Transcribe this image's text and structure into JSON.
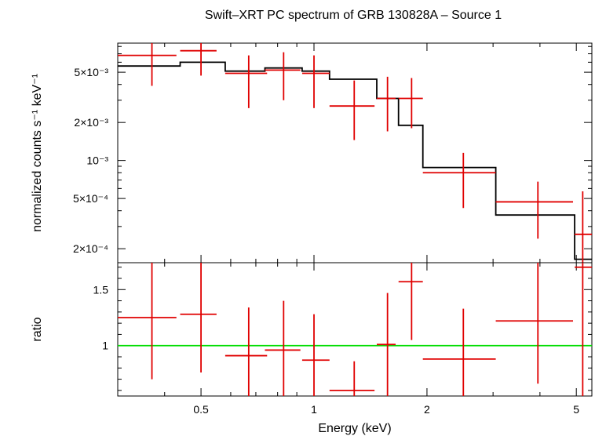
{
  "chart_data": {
    "type": "scatter",
    "title": "Swift–XRT PC spectrum of GRB 130828A – Source 1",
    "xlabel": "Energy (keV)",
    "x_scale": "log",
    "xlim": [
      0.3,
      5.5
    ],
    "x_ticks": [
      {
        "value": 0.5,
        "label": "0.5"
      },
      {
        "value": 1,
        "label": "1"
      },
      {
        "value": 2,
        "label": "2"
      },
      {
        "value": 5,
        "label": "5"
      }
    ],
    "panels": [
      {
        "name": "spectrum",
        "ylabel": "normalized counts s⁻¹ keV⁻¹",
        "y_scale": "log",
        "ylim": [
          0.000155,
          0.0085
        ],
        "y_ticks": [
          {
            "value": 0.0002,
            "label": "2×10⁻⁴"
          },
          {
            "value": 0.0005,
            "label": "5×10⁻⁴"
          },
          {
            "value": 0.001,
            "label": "10⁻³"
          },
          {
            "value": 0.002,
            "label": "2×10⁻³"
          },
          {
            "value": 0.005,
            "label": "5×10⁻³"
          }
        ],
        "data": [
          {
            "xlo": 0.3,
            "xhi": 0.43,
            "x": 0.37,
            "y": 0.0068,
            "ylo": 0.0039,
            "yhi": 0.0085
          },
          {
            "xlo": 0.44,
            "xhi": 0.55,
            "x": 0.5,
            "y": 0.0074,
            "ylo": 0.0047,
            "yhi": 0.0085
          },
          {
            "xlo": 0.58,
            "xhi": 0.75,
            "x": 0.67,
            "y": 0.0049,
            "ylo": 0.0026,
            "yhi": 0.0068
          },
          {
            "xlo": 0.74,
            "xhi": 0.92,
            "x": 0.83,
            "y": 0.0052,
            "ylo": 0.003,
            "yhi": 0.0072
          },
          {
            "xlo": 0.93,
            "xhi": 1.1,
            "x": 1.0,
            "y": 0.0049,
            "ylo": 0.0026,
            "yhi": 0.0068
          },
          {
            "xlo": 1.1,
            "xhi": 1.45,
            "x": 1.28,
            "y": 0.0027,
            "ylo": 0.00145,
            "yhi": 0.0043
          },
          {
            "xlo": 1.47,
            "xhi": 1.65,
            "x": 1.57,
            "y": 0.0031,
            "ylo": 0.0017,
            "yhi": 0.0046
          },
          {
            "xlo": 1.68,
            "xhi": 1.95,
            "x": 1.82,
            "y": 0.0031,
            "ylo": 0.0018,
            "yhi": 0.0045
          },
          {
            "xlo": 1.95,
            "xhi": 3.05,
            "x": 2.5,
            "y": 0.0008,
            "ylo": 0.00042,
            "yhi": 0.00115
          },
          {
            "xlo": 3.05,
            "xhi": 4.9,
            "x": 3.95,
            "y": 0.00047,
            "ylo": 0.00024,
            "yhi": 0.00068
          },
          {
            "xlo": 4.95,
            "xhi": 5.5,
            "x": 5.2,
            "y": 0.00026,
            "ylo": 0.000155,
            "yhi": 0.00057
          }
        ],
        "model": [
          [
            0.3,
            0.0056
          ],
          [
            0.44,
            0.0056
          ],
          [
            0.44,
            0.006
          ],
          [
            0.58,
            0.006
          ],
          [
            0.58,
            0.0051
          ],
          [
            0.74,
            0.0051
          ],
          [
            0.74,
            0.0054
          ],
          [
            0.93,
            0.0054
          ],
          [
            0.93,
            0.0051
          ],
          [
            1.1,
            0.0051
          ],
          [
            1.1,
            0.0044
          ],
          [
            1.47,
            0.0044
          ],
          [
            1.47,
            0.0031
          ],
          [
            1.68,
            0.0031
          ],
          [
            1.68,
            0.0019
          ],
          [
            1.95,
            0.0019
          ],
          [
            1.95,
            0.00088
          ],
          [
            3.05,
            0.00088
          ],
          [
            3.05,
            0.00037
          ],
          [
            4.95,
            0.00037
          ],
          [
            4.95,
            0.000165
          ],
          [
            5.5,
            0.000165
          ]
        ]
      },
      {
        "name": "ratio",
        "ylabel": "ratio",
        "y_scale": "linear",
        "ylim": [
          0.55,
          1.74
        ],
        "y_ticks": [
          {
            "value": 1,
            "label": "1"
          },
          {
            "value": 1.5,
            "label": "1.5"
          }
        ],
        "reference_line": 1,
        "data": [
          {
            "xlo": 0.3,
            "xhi": 0.43,
            "x": 0.37,
            "y": 1.25,
            "ylo": 0.7,
            "yhi": 1.74
          },
          {
            "xlo": 0.44,
            "xhi": 0.55,
            "x": 0.5,
            "y": 1.28,
            "ylo": 0.76,
            "yhi": 1.74
          },
          {
            "xlo": 0.58,
            "xhi": 0.75,
            "x": 0.67,
            "y": 0.91,
            "ylo": 0.55,
            "yhi": 1.34
          },
          {
            "xlo": 0.74,
            "xhi": 0.92,
            "x": 0.83,
            "y": 0.96,
            "ylo": 0.55,
            "yhi": 1.4
          },
          {
            "xlo": 0.93,
            "xhi": 1.1,
            "x": 1.0,
            "y": 0.87,
            "ylo": 0.55,
            "yhi": 1.28
          },
          {
            "xlo": 1.1,
            "xhi": 1.45,
            "x": 1.28,
            "y": 0.6,
            "ylo": 0.55,
            "yhi": 0.86
          },
          {
            "xlo": 1.47,
            "xhi": 1.65,
            "x": 1.57,
            "y": 1.01,
            "ylo": 0.55,
            "yhi": 1.47
          },
          {
            "xlo": 1.68,
            "xhi": 1.95,
            "x": 1.82,
            "y": 1.57,
            "ylo": 1.05,
            "yhi": 1.74
          },
          {
            "xlo": 1.95,
            "xhi": 3.05,
            "x": 2.5,
            "y": 0.88,
            "ylo": 0.55,
            "yhi": 1.33
          },
          {
            "xlo": 3.05,
            "xhi": 4.9,
            "x": 3.95,
            "y": 1.22,
            "ylo": 0.66,
            "yhi": 1.74
          },
          {
            "xlo": 4.95,
            "xhi": 5.5,
            "x": 5.2,
            "y": 1.7,
            "ylo": 0.55,
            "yhi": 1.74
          }
        ]
      }
    ],
    "colors": {
      "data": "#e00000",
      "model": "#000000",
      "reference": "#00dd00",
      "axes": "#000000"
    }
  }
}
